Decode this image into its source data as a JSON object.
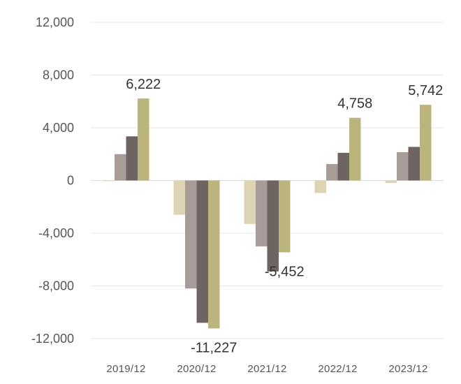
{
  "chart_data": {
    "type": "bar",
    "categories": [
      "2019/12",
      "2020/12",
      "2021/12",
      "2022/12",
      "2023/12"
    ],
    "series": [
      {
        "values": [
          -50,
          -2600,
          -3300,
          -950,
          -200
        ],
        "color": "#ddd4b3"
      },
      {
        "values": [
          2000,
          -8200,
          -5000,
          1250,
          2150
        ],
        "color": "#a89c98"
      },
      {
        "values": [
          3350,
          -10800,
          -6900,
          2100,
          2550
        ],
        "color": "#6e6563"
      },
      {
        "values": [
          6222,
          -11227,
          -5452,
          4758,
          5742
        ],
        "color": "#bbb47d"
      }
    ],
    "data_labels": [
      {
        "category": "2019/12",
        "text": "6,222",
        "placement": "above"
      },
      {
        "category": "2020/12",
        "text": "-11,227",
        "placement": "below"
      },
      {
        "category": "2021/12",
        "text": "-5,452",
        "placement": "below"
      },
      {
        "category": "2022/12",
        "text": "4,758",
        "placement": "above"
      },
      {
        "category": "2023/12",
        "text": "5,742",
        "placement": "above"
      }
    ],
    "y_ticks": [
      "12,000",
      "8,000",
      "4,000",
      "0",
      "-4,000",
      "-8,000",
      "-12,000"
    ],
    "ylim": [
      -12000,
      12000
    ],
    "grid": true,
    "title": "",
    "xlabel": "",
    "ylabel": ""
  }
}
